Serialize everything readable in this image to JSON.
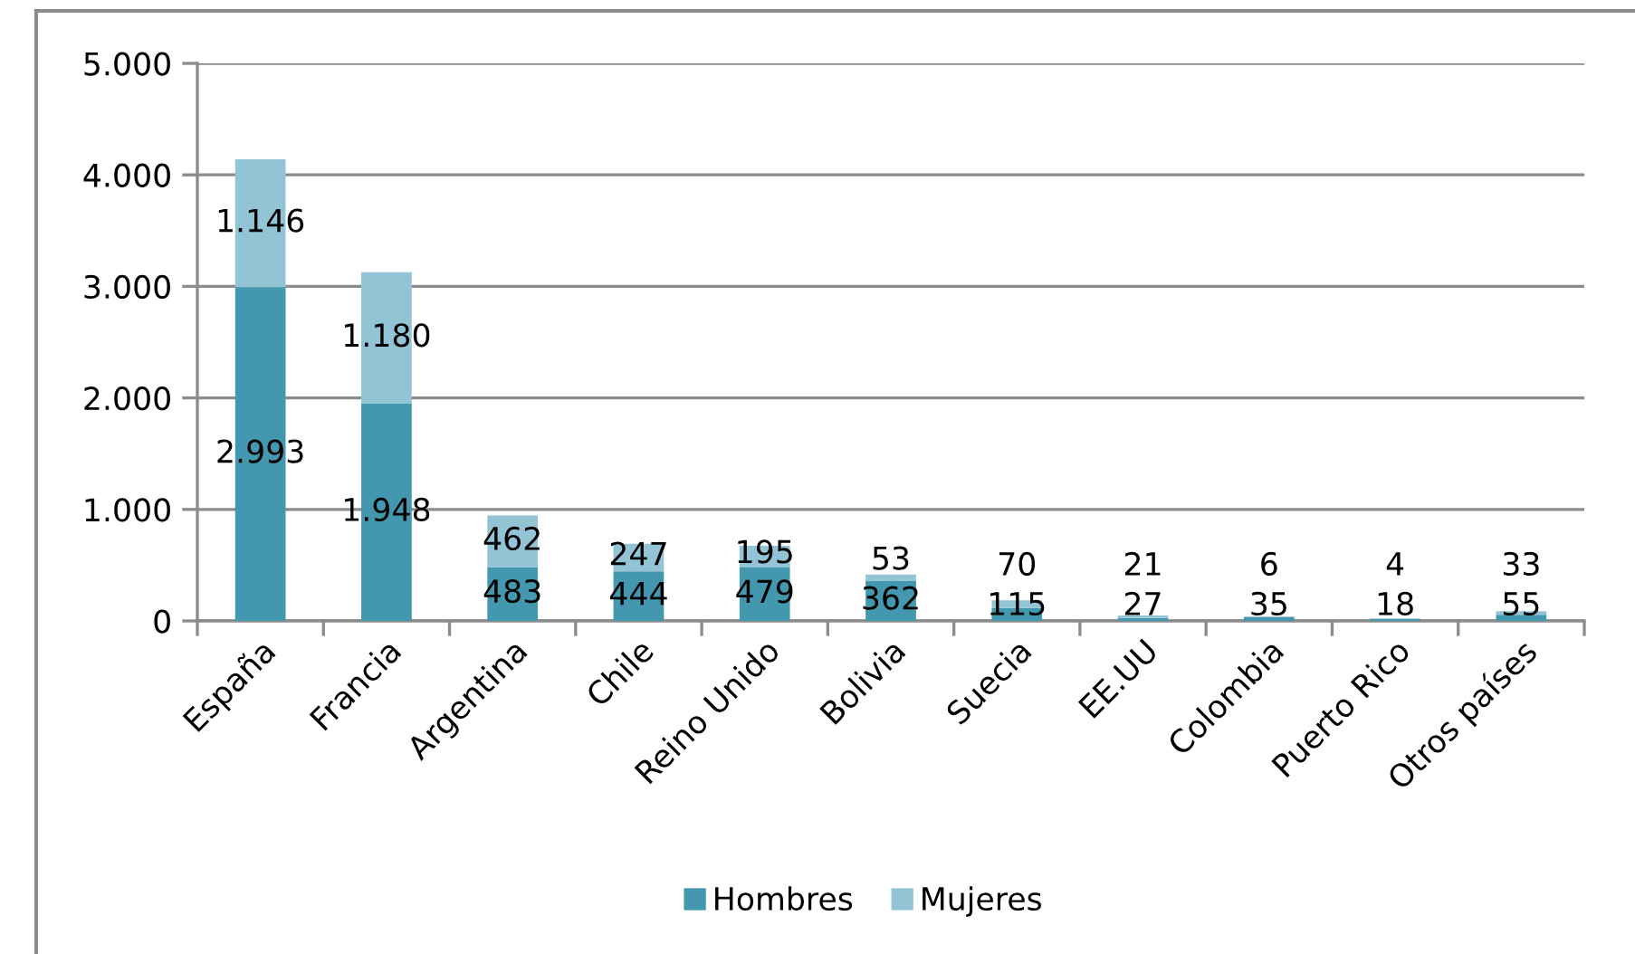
{
  "chart_data": {
    "type": "bar",
    "stacked": true,
    "categories": [
      "España",
      "Francia",
      "Argentina",
      "Chile",
      "Reino Unido",
      "Bolivia",
      "Suecia",
      "EE.UU",
      "Colombia",
      "Puerto Rico",
      "Otros países"
    ],
    "series": [
      {
        "name": "Hombres",
        "color": "#4397ae",
        "values": [
          2993,
          1948,
          483,
          444,
          479,
          362,
          115,
          27,
          35,
          18,
          55
        ],
        "value_labels": [
          "2.993",
          "1.948",
          "483",
          "444",
          "479",
          "362",
          "115",
          "27",
          "35",
          "18",
          "55"
        ]
      },
      {
        "name": "Mujeres",
        "color": "#93c4d5",
        "values": [
          1146,
          1180,
          462,
          247,
          195,
          53,
          70,
          21,
          6,
          4,
          33
        ],
        "value_labels": [
          "1.146",
          "1.180",
          "462",
          "247",
          "195",
          "53",
          "70",
          "21",
          "6",
          "4",
          "33"
        ]
      }
    ],
    "ylim": [
      0,
      5000
    ],
    "yticks": [
      0,
      {
        "value": 1000,
        "label": "1.000"
      },
      {
        "value": 2000,
        "label": "2.000"
      },
      {
        "value": 3000,
        "label": "3.000"
      },
      {
        "value": 4000,
        "label": "4.000"
      },
      {
        "value": 5000,
        "label": "5.000"
      }
    ],
    "grid": "y",
    "legend": "bottom"
  }
}
